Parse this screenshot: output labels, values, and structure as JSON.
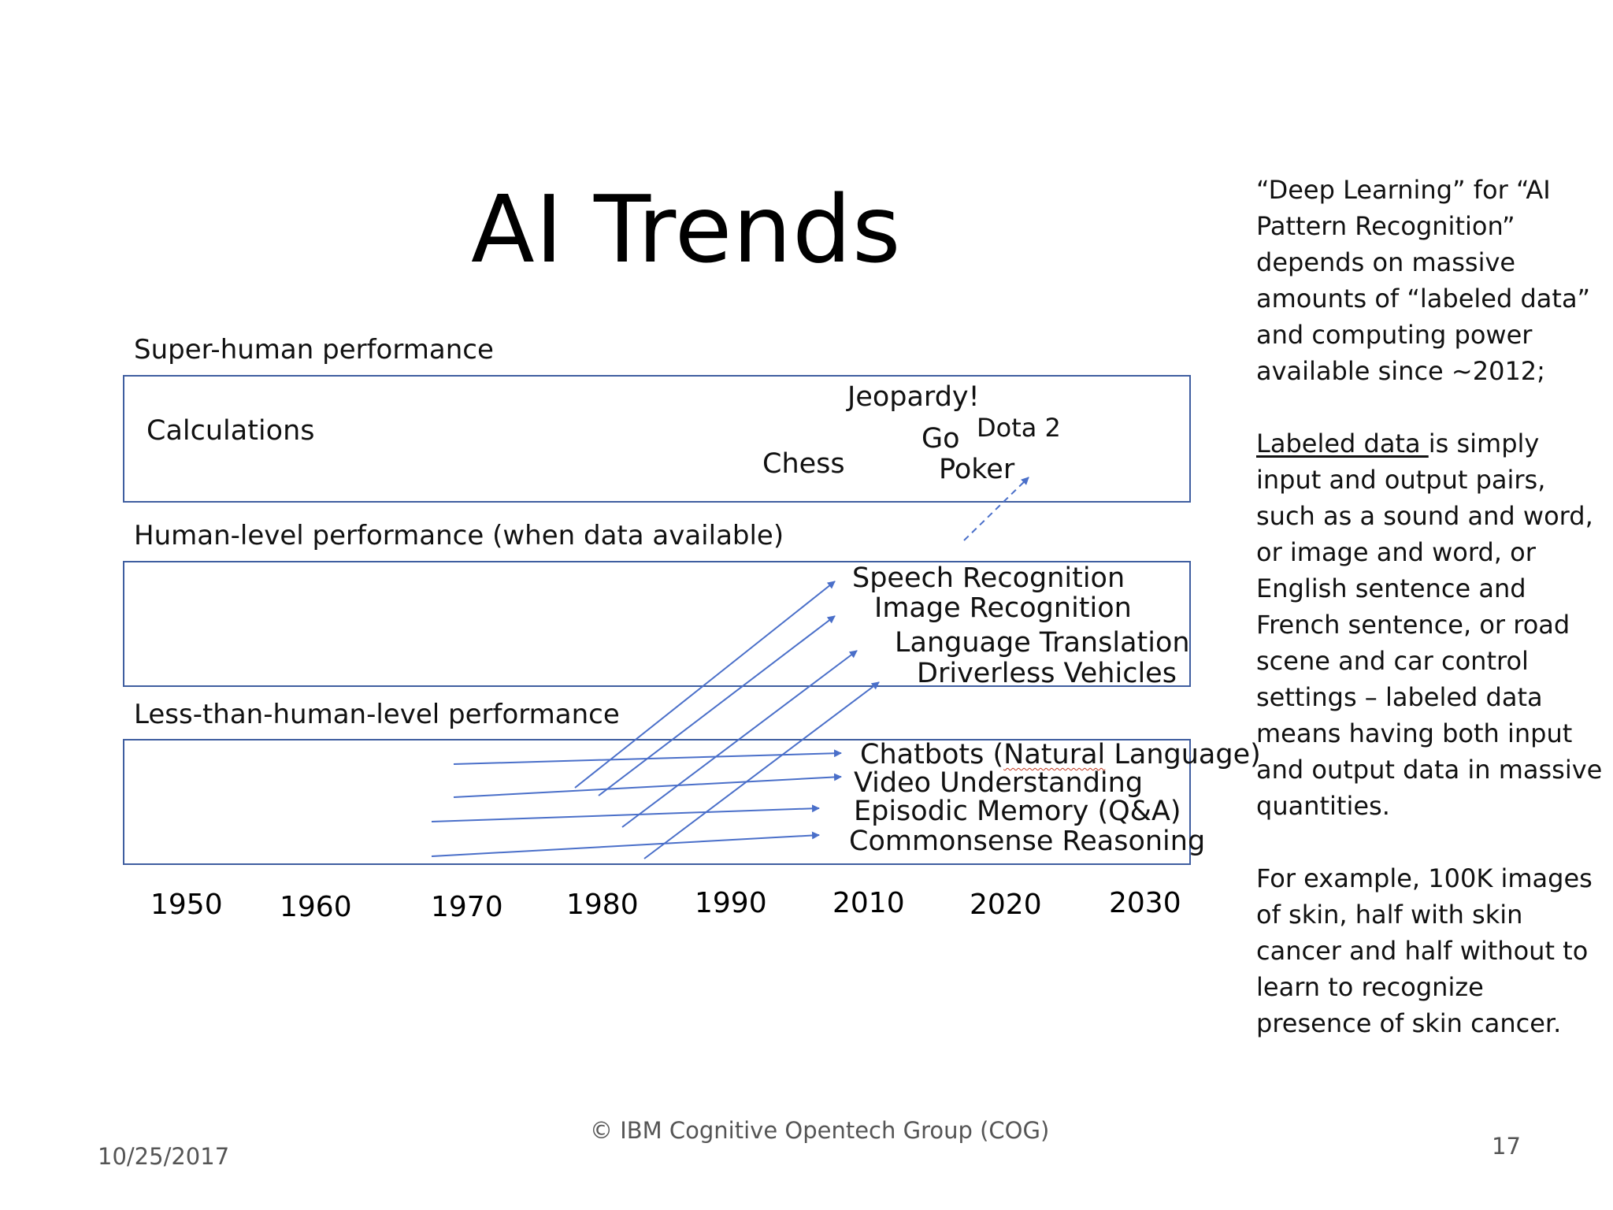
{
  "slide": {
    "title": "AI Trends",
    "date": "10/25/2017",
    "footer": "© IBM Cognitive Opentech Group (COG)",
    "page_number": "17"
  },
  "bands": {
    "super": {
      "label": "Super-human performance",
      "items": {
        "calculations": "Calculations",
        "jeopardy": "Jeopardy!",
        "go": "Go",
        "dota2": "Dota 2",
        "chess": "Chess",
        "poker": "Poker"
      }
    },
    "human": {
      "label": "Human-level performance (when data available)",
      "items": {
        "speech": "Speech Recognition",
        "image": "Image Recognition",
        "translation": "Language Translation",
        "driverless": "Driverless Vehicles"
      }
    },
    "less": {
      "label": "Less-than-human-level performance",
      "items": {
        "chatbots_main": "Chatbots (",
        "chatbots_underlined": "Natural",
        "chatbots_tail": " Language)",
        "video": "Video Understanding",
        "episodic": "Episodic Memory (Q&A)",
        "commonsense": "Commonsense Reasoning"
      }
    }
  },
  "timeline": {
    "years": [
      "1950",
      "1960",
      "1970",
      "1980",
      "1990",
      "2010",
      "2020",
      "2030"
    ]
  },
  "sidebar": {
    "p1": "“Deep Learning” for “AI Pattern Recognition” depends on massive amounts of “labeled data” and computing power available since ~2012;",
    "p2_underlined": "Labeled data ",
    "p2_rest": "is simply input and output pairs, such as a sound and word, or image and word, or English sentence and French sentence, or road scene and car control settings  – labeled data means having both input and output data in massive quantities.",
    "p3": "For example, 100K images of skin, half with skin cancer and half without to learn to recognize presence of skin cancer."
  },
  "colors": {
    "box_border": "#3f5ea0",
    "arrow": "#4a6fc9",
    "spell_underline": "#c23b22"
  },
  "icons": {
    "arrowhead": "arrowhead-icon"
  }
}
